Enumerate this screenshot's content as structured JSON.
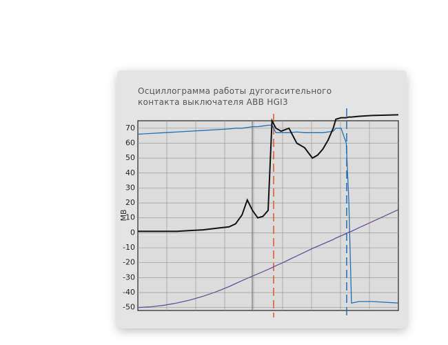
{
  "chart_data": {
    "type": "line",
    "title": "Осциллограмма работы дугогасительного контакта выключателя ABB HGI3",
    "ylabel": "МВ",
    "x": [
      0,
      5,
      10,
      15,
      20,
      25,
      30,
      35,
      37.5,
      40,
      42,
      44,
      46,
      48,
      50,
      51.5,
      53,
      55,
      58,
      61,
      64,
      67,
      69,
      71,
      73,
      75,
      76,
      78,
      80,
      81,
      82,
      85,
      90,
      100
    ],
    "xlim": [
      0,
      100
    ],
    "ylim": [
      -52,
      75
    ],
    "yticks": [
      70,
      60,
      50,
      40,
      30,
      20,
      10,
      0,
      -10,
      -20,
      -30,
      -40,
      -50
    ],
    "grid": true,
    "series": [
      {
        "color": "#1f6fb5",
        "values": [
          66,
          66.5,
          67,
          67.5,
          68,
          68.5,
          69,
          69.5,
          70,
          70,
          70.5,
          71,
          71,
          71.5,
          72,
          72,
          67,
          67,
          67,
          67.5,
          67,
          67,
          67,
          67,
          67.5,
          68,
          70,
          70,
          60,
          20,
          -47,
          -46,
          -46,
          -47
        ]
      },
      {
        "color": "#6a4c9c",
        "values": [
          -50,
          -49.5,
          -48.5,
          -47,
          -45,
          -42.5,
          -39.5,
          -36,
          -34,
          -32,
          -30.5,
          -29,
          -27.5,
          -26,
          -24.5,
          -23.3,
          -22,
          -20.5,
          -18,
          -15.5,
          -13,
          -10.5,
          -9,
          -7.5,
          -6,
          -4.5,
          -3.5,
          -2,
          -0.5,
          0.5,
          1,
          3.5,
          7.5,
          15.5
        ]
      },
      {
        "color": "#111111",
        "values": [
          1,
          1,
          1,
          1,
          1.5,
          2,
          3,
          4,
          6,
          12,
          22,
          15,
          10,
          11,
          15,
          75,
          70,
          68,
          70,
          60,
          57,
          50,
          52,
          56,
          62,
          70,
          76,
          77,
          77,
          77.5,
          77.5,
          78,
          78.5,
          79
        ]
      }
    ]
  }
}
